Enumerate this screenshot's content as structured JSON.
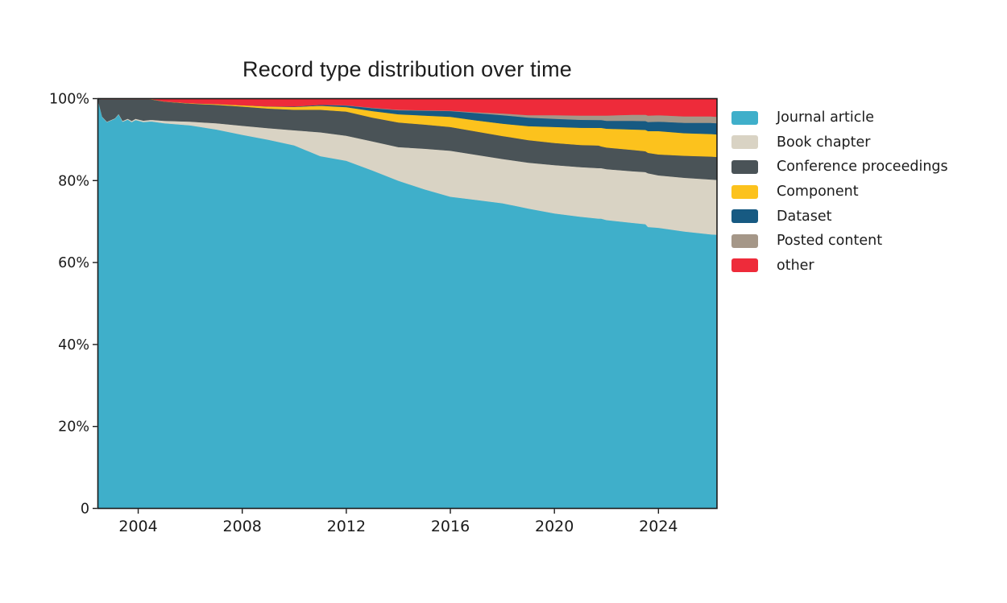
{
  "page": {
    "background": "#ffffff",
    "text_color": "#1b1b1b"
  },
  "chart_data": {
    "type": "area",
    "stacked": true,
    "normalized": "percent_of_total",
    "title": "Record type distribution over time",
    "xlabel": "",
    "ylabel": "",
    "grid": false,
    "legend_position": "right-outside",
    "xlim": [
      2002.45,
      2026.25
    ],
    "ylim": [
      0,
      100
    ],
    "xticks": [
      {
        "value": 2004,
        "label": "2004"
      },
      {
        "value": 2008,
        "label": "2008"
      },
      {
        "value": 2012,
        "label": "2012"
      },
      {
        "value": 2016,
        "label": "2016"
      },
      {
        "value": 2020,
        "label": "2020"
      },
      {
        "value": 2024,
        "label": "2024"
      }
    ],
    "yticks": [
      {
        "value": 0,
        "label": "0"
      },
      {
        "value": 20,
        "label": "20%"
      },
      {
        "value": 40,
        "label": "40%"
      },
      {
        "value": 60,
        "label": "60%"
      },
      {
        "value": 80,
        "label": "80%"
      },
      {
        "value": 100,
        "label": "100%"
      }
    ],
    "x": [
      2002.45,
      2002.62,
      2002.8,
      2003.1,
      2003.25,
      2003.4,
      2003.6,
      2003.75,
      2003.9,
      2004.2,
      2004.5,
      2005,
      2006,
      2007,
      2008,
      2009,
      2010,
      2011,
      2012,
      2013,
      2014,
      2015,
      2016,
      2017,
      2018,
      2019,
      2020,
      2021,
      2021.7,
      2021.8,
      2022,
      2023,
      2023.5,
      2023.6,
      2024,
      2025,
      2026,
      2026.25
    ],
    "series": [
      {
        "name": "Journal article",
        "color": "#3fafca",
        "values": [
          99.8,
          95.5,
          94.3,
          95.1,
          96.2,
          94.4,
          94.9,
          94.3,
          94.8,
          94.3,
          94.5,
          94.0,
          93.5,
          92.5,
          91.2,
          90.0,
          88.6,
          86.0,
          84.9,
          82.5,
          80.0,
          77.9,
          76.1,
          75.3,
          74.5,
          73.2,
          72.0,
          71.2,
          70.6,
          70.6,
          70.4,
          69.7,
          69.4,
          68.7,
          68.5,
          67.6,
          66.9,
          66.8
        ]
      },
      {
        "name": "Book chapter",
        "color": "#d9d3c4",
        "values": [
          0,
          0.1,
          0.1,
          0.1,
          0.1,
          0.2,
          0.2,
          0.3,
          0.3,
          0.35,
          0.4,
          0.6,
          0.9,
          1.5,
          2.2,
          2.8,
          3.7,
          5.8,
          6.1,
          7.1,
          8.2,
          9.9,
          11.2,
          11.0,
          10.8,
          11.2,
          11.8,
          12.1,
          12.3,
          12.3,
          12.4,
          12.6,
          12.7,
          13.1,
          12.8,
          13.1,
          13.4,
          13.4
        ]
      },
      {
        "name": "Conference proceedings",
        "color": "#4a5357",
        "values": [
          0.2,
          4.3,
          5.5,
          4.7,
          3.6,
          5.3,
          4.8,
          5.3,
          4.8,
          5.25,
          5.0,
          4.7,
          4.4,
          4.5,
          4.7,
          4.8,
          5.0,
          5.5,
          5.9,
          5.8,
          6.0,
          5.9,
          5.8,
          5.7,
          5.6,
          5.5,
          5.4,
          5.4,
          5.5,
          5.3,
          5.3,
          5.2,
          5.1,
          5.0,
          5.1,
          5.4,
          5.6,
          5.6
        ]
      },
      {
        "name": "Component",
        "color": "#fcc21d",
        "values": [
          0,
          0,
          0,
          0,
          0,
          0,
          0,
          0,
          0,
          0,
          0.05,
          0.05,
          0.1,
          0.2,
          0.3,
          0.5,
          0.7,
          1.0,
          1.1,
          1.6,
          2.0,
          2.2,
          2.5,
          2.7,
          3.0,
          3.4,
          3.9,
          4.2,
          4.3,
          4.5,
          4.6,
          5.0,
          5.2,
          5.3,
          5.7,
          5.5,
          5.5,
          5.5
        ]
      },
      {
        "name": "Dataset",
        "color": "#175a82",
        "values": [
          0,
          0,
          0,
          0,
          0,
          0,
          0,
          0,
          0,
          0,
          0,
          0,
          0,
          0,
          0,
          0.05,
          0.1,
          0.2,
          0.4,
          0.7,
          1.0,
          1.2,
          1.4,
          1.8,
          2.1,
          2.1,
          2.0,
          1.95,
          1.9,
          1.9,
          1.9,
          2.1,
          2.15,
          2.2,
          2.3,
          2.5,
          2.7,
          2.7
        ]
      },
      {
        "name": "Posted content",
        "color": "#a59788",
        "values": [
          0,
          0,
          0,
          0,
          0,
          0,
          0,
          0,
          0,
          0,
          0,
          0,
          0,
          0,
          0,
          0,
          0,
          0,
          0.05,
          0.1,
          0.1,
          0.1,
          0.1,
          0.2,
          0.4,
          0.6,
          0.9,
          1.05,
          1.1,
          1.1,
          1.3,
          1.5,
          1.55,
          1.6,
          1.6,
          1.6,
          1.6,
          1.6
        ]
      },
      {
        "name": "other",
        "color": "#ee2b3a",
        "values": [
          0,
          0.1,
          0.1,
          0.1,
          0.1,
          0.1,
          0.1,
          0.1,
          0.1,
          0.1,
          0.1,
          0.65,
          1.1,
          1.3,
          1.6,
          1.85,
          1.9,
          1.5,
          1.6,
          2.2,
          2.7,
          2.8,
          2.9,
          3.3,
          3.6,
          4.0,
          4.0,
          4.1,
          4.1,
          4.1,
          4.1,
          3.9,
          3.9,
          4.1,
          4.0,
          4.3,
          4.3,
          4.4
        ]
      }
    ],
    "axis_color": "#1b1b1b",
    "tick_label_color": "#1b1b1b"
  }
}
